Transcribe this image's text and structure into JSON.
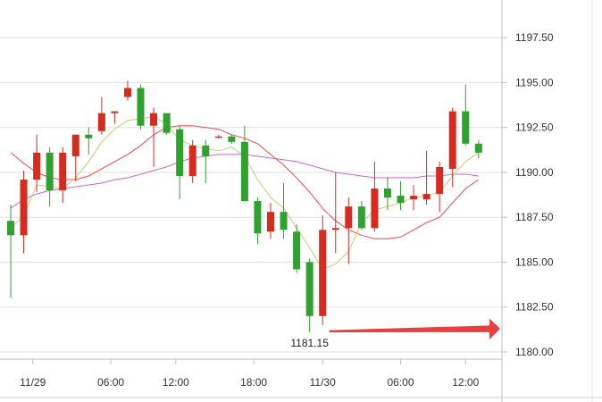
{
  "chart_data": {
    "type": "candlestick",
    "title": "",
    "xlabel": "",
    "ylabel": "",
    "ylim": [
      1179.6,
      1199.6
    ],
    "y_ticks": [
      "1180.00",
      "1182.50",
      "1185.00",
      "1187.50",
      "1190.00",
      "1192.50",
      "1195.00",
      "1197.50"
    ],
    "x_ticks": [
      "11/29",
      "06:00",
      "12:00",
      "18:00",
      "11/30",
      "06:00",
      "12:00"
    ],
    "x_tick_index": [
      1.7,
      7.7,
      12.7,
      18.7,
      24.0,
      30.0,
      35.0
    ],
    "grid": true,
    "colors": {
      "up": "#d82b1f",
      "down": "#2ea12e",
      "ma_short": "#c8cc7c",
      "ma_mid": "#ef4a4a",
      "ma_long": "#c56ad0",
      "arrow": "#e84040",
      "grid": "#e2e2e2",
      "axis": "#bfbfbf"
    },
    "candles": [
      {
        "o": 1187.3,
        "h": 1188.2,
        "l": 1183.0,
        "c": 1186.5
      },
      {
        "o": 1186.5,
        "h": 1190.1,
        "l": 1185.5,
        "c": 1189.6
      },
      {
        "o": 1189.6,
        "h": 1192.1,
        "l": 1188.9,
        "c": 1191.1
      },
      {
        "o": 1191.1,
        "h": 1191.4,
        "l": 1188.1,
        "c": 1189.0
      },
      {
        "o": 1189.0,
        "h": 1191.4,
        "l": 1188.3,
        "c": 1191.1
      },
      {
        "o": 1190.9,
        "h": 1192.1,
        "l": 1189.5,
        "c": 1192.1
      },
      {
        "o": 1192.1,
        "h": 1192.5,
        "l": 1191.0,
        "c": 1191.9
      },
      {
        "o": 1192.3,
        "h": 1194.2,
        "l": 1192.1,
        "c": 1193.3
      },
      {
        "o": 1193.3,
        "h": 1193.4,
        "l": 1192.7,
        "c": 1193.4
      },
      {
        "o": 1194.2,
        "h": 1195.1,
        "l": 1194.0,
        "c": 1194.7
      },
      {
        "o": 1194.7,
        "h": 1194.9,
        "l": 1192.4,
        "c": 1192.6
      },
      {
        "o": 1192.6,
        "h": 1193.6,
        "l": 1190.3,
        "c": 1193.3
      },
      {
        "o": 1193.3,
        "h": 1193.3,
        "l": 1192.1,
        "c": 1192.2
      },
      {
        "o": 1192.4,
        "h": 1192.6,
        "l": 1188.5,
        "c": 1189.8
      },
      {
        "o": 1189.8,
        "h": 1191.8,
        "l": 1189.4,
        "c": 1191.5
      },
      {
        "o": 1191.5,
        "h": 1191.8,
        "l": 1189.4,
        "c": 1190.9
      },
      {
        "o": 1192.0,
        "h": 1192.1,
        "l": 1191.9,
        "c": 1192.0
      },
      {
        "o": 1192.0,
        "h": 1192.1,
        "l": 1191.6,
        "c": 1191.7
      },
      {
        "o": 1191.7,
        "h": 1192.6,
        "l": 1188.4,
        "c": 1188.4
      },
      {
        "o": 1188.4,
        "h": 1188.6,
        "l": 1186.0,
        "c": 1186.6
      },
      {
        "o": 1186.7,
        "h": 1188.3,
        "l": 1186.3,
        "c": 1187.8
      },
      {
        "o": 1187.8,
        "h": 1189.4,
        "l": 1186.3,
        "c": 1186.8
      },
      {
        "o": 1186.7,
        "h": 1187.1,
        "l": 1184.4,
        "c": 1184.6
      },
      {
        "o": 1185.0,
        "h": 1185.2,
        "l": 1181.1,
        "c": 1182.0
      },
      {
        "o": 1182.0,
        "h": 1187.6,
        "l": 1181.5,
        "c": 1186.8
      },
      {
        "o": 1186.8,
        "h": 1190.0,
        "l": 1185.5,
        "c": 1186.9
      },
      {
        "o": 1186.9,
        "h": 1188.6,
        "l": 1184.9,
        "c": 1188.1
      },
      {
        "o": 1188.1,
        "h": 1188.4,
        "l": 1186.8,
        "c": 1186.9
      },
      {
        "o": 1186.9,
        "h": 1190.6,
        "l": 1186.7,
        "c": 1189.1
      },
      {
        "o": 1189.1,
        "h": 1189.7,
        "l": 1187.9,
        "c": 1188.6
      },
      {
        "o": 1188.7,
        "h": 1189.5,
        "l": 1187.9,
        "c": 1188.3
      },
      {
        "o": 1188.5,
        "h": 1189.3,
        "l": 1187.9,
        "c": 1188.7
      },
      {
        "o": 1188.5,
        "h": 1191.2,
        "l": 1188.2,
        "c": 1188.8
      },
      {
        "o": 1188.8,
        "h": 1190.6,
        "l": 1187.8,
        "c": 1190.3
      },
      {
        "o": 1190.2,
        "h": 1193.6,
        "l": 1189.2,
        "c": 1193.4
      },
      {
        "o": 1193.4,
        "h": 1194.9,
        "l": 1191.5,
        "c": 1191.6
      },
      {
        "o": 1191.6,
        "h": 1191.8,
        "l": 1190.8,
        "c": 1191.1
      }
    ],
    "ma_short": [
      1186.9,
      1187.6,
      1189.3,
      1189.2,
      1189.1,
      1189.7,
      1190.6,
      1191.7,
      1192.4,
      1192.9,
      1193.0,
      1193.1,
      1192.7,
      1191.8,
      1191.5,
      1191.3,
      1191.2,
      1191.4,
      1190.9,
      1189.6,
      1188.6,
      1188.0,
      1186.9,
      1185.8,
      1184.6,
      1184.9,
      1185.6,
      1187.2,
      1187.9,
      1188.1,
      1188.3,
      1188.6,
      1188.7,
      1188.9,
      1189.8,
      1190.6,
      1191.1
    ],
    "ma_mid": [
      1191.1,
      1190.5,
      1190.0,
      1189.7,
      1189.6,
      1189.6,
      1189.8,
      1190.2,
      1190.6,
      1191.0,
      1191.5,
      1192.1,
      1192.5,
      1192.6,
      1192.6,
      1192.5,
      1192.4,
      1192.1,
      1191.9,
      1191.6,
      1191.0,
      1190.4,
      1189.7,
      1188.9,
      1188.0,
      1187.3,
      1186.8,
      1186.5,
      1186.3,
      1186.3,
      1186.4,
      1186.8,
      1187.2,
      1187.5,
      1188.3,
      1189.1,
      1189.6
    ],
    "ma_long": [
      1188.0,
      1188.5,
      1188.8,
      1189.0,
      1189.1,
      1189.2,
      1189.3,
      1189.4,
      1189.6,
      1189.7,
      1189.9,
      1190.1,
      1190.3,
      1190.6,
      1190.8,
      1190.9,
      1191.0,
      1191.0,
      1191.0,
      1190.9,
      1190.8,
      1190.7,
      1190.6,
      1190.4,
      1190.2,
      1190.0,
      1189.9,
      1189.8,
      1189.7,
      1189.7,
      1189.7,
      1189.7,
      1189.8,
      1189.8,
      1189.9,
      1189.9,
      1189.8
    ],
    "annotation": {
      "label": "1181.15",
      "value": 1181.15,
      "at_index": 23
    }
  }
}
